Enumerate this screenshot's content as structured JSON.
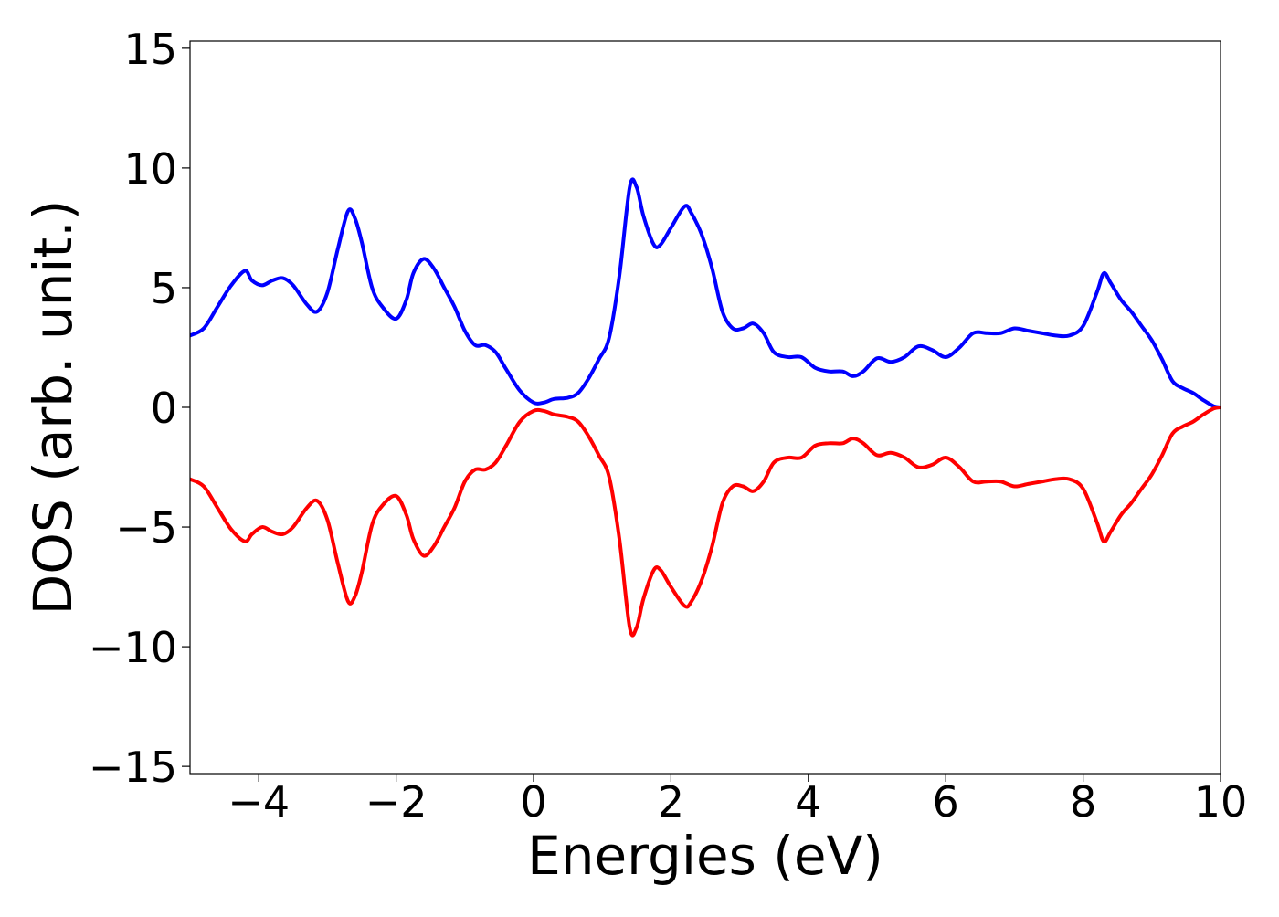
{
  "chart_data": {
    "type": "line",
    "title": "",
    "xlabel": "Energies (eV)",
    "ylabel": "DOS (arb. unit.)",
    "xlim": [
      -5,
      10
    ],
    "ylim": [
      -15.3,
      15.3
    ],
    "xticks": [
      -4,
      -2,
      0,
      2,
      4,
      6,
      8,
      10
    ],
    "xtick_labels": [
      "−4",
      "−2",
      "0",
      "2",
      "4",
      "6",
      "8",
      "10"
    ],
    "yticks": [
      -15,
      -10,
      -5,
      0,
      5,
      10,
      15
    ],
    "ytick_labels": [
      "−15",
      "−10",
      "−5",
      "0",
      "5",
      "10",
      "15"
    ],
    "grid": false,
    "legend": "none",
    "series": [
      {
        "color": "#0000ff",
        "x": [
          -5.0,
          -4.8,
          -4.6,
          -4.4,
          -4.2,
          -4.1,
          -3.95,
          -3.8,
          -3.65,
          -3.5,
          -3.3,
          -3.15,
          -3.0,
          -2.85,
          -2.7,
          -2.6,
          -2.5,
          -2.35,
          -2.2,
          -2.0,
          -1.85,
          -1.75,
          -1.6,
          -1.45,
          -1.3,
          -1.15,
          -1.0,
          -0.85,
          -0.7,
          -0.55,
          -0.4,
          -0.2,
          0.0,
          0.15,
          0.3,
          0.5,
          0.65,
          0.8,
          0.95,
          1.1,
          1.25,
          1.4,
          1.5,
          1.6,
          1.75,
          1.85,
          2.0,
          2.2,
          2.3,
          2.45,
          2.6,
          2.75,
          2.9,
          3.05,
          3.2,
          3.35,
          3.5,
          3.7,
          3.9,
          4.1,
          4.3,
          4.5,
          4.65,
          4.8,
          5.0,
          5.2,
          5.4,
          5.6,
          5.8,
          6.0,
          6.2,
          6.4,
          6.6,
          6.8,
          7.0,
          7.2,
          7.4,
          7.6,
          7.8,
          8.0,
          8.2,
          8.3,
          8.4,
          8.55,
          8.7,
          8.85,
          9.0,
          9.15,
          9.3,
          9.45,
          9.6,
          9.75,
          9.9,
          10.0
        ],
        "y": [
          3.0,
          3.3,
          4.2,
          5.1,
          5.7,
          5.3,
          5.1,
          5.3,
          5.4,
          5.1,
          4.3,
          4.0,
          4.8,
          6.6,
          8.2,
          7.9,
          6.9,
          5.0,
          4.2,
          3.7,
          4.5,
          5.6,
          6.2,
          5.8,
          5.0,
          4.2,
          3.2,
          2.6,
          2.6,
          2.3,
          1.6,
          0.7,
          0.2,
          0.2,
          0.35,
          0.4,
          0.6,
          1.2,
          2.0,
          2.9,
          5.5,
          9.2,
          9.2,
          8.0,
          6.8,
          6.8,
          7.5,
          8.4,
          8.1,
          7.2,
          5.8,
          4.0,
          3.3,
          3.3,
          3.5,
          3.1,
          2.3,
          2.1,
          2.1,
          1.65,
          1.5,
          1.5,
          1.3,
          1.5,
          2.05,
          1.9,
          2.1,
          2.55,
          2.4,
          2.1,
          2.5,
          3.1,
          3.1,
          3.1,
          3.3,
          3.2,
          3.1,
          3.0,
          3.0,
          3.4,
          4.8,
          5.6,
          5.2,
          4.5,
          4.0,
          3.4,
          2.8,
          2.0,
          1.1,
          0.8,
          0.6,
          0.3,
          0.05,
          0.0
        ]
      },
      {
        "color": "#ff0000",
        "x": [
          -5.0,
          -4.8,
          -4.6,
          -4.4,
          -4.2,
          -4.1,
          -3.95,
          -3.8,
          -3.65,
          -3.5,
          -3.3,
          -3.15,
          -3.0,
          -2.85,
          -2.7,
          -2.6,
          -2.5,
          -2.35,
          -2.2,
          -2.0,
          -1.85,
          -1.75,
          -1.6,
          -1.45,
          -1.3,
          -1.15,
          -1.0,
          -0.85,
          -0.7,
          -0.55,
          -0.4,
          -0.2,
          0.0,
          0.15,
          0.3,
          0.5,
          0.65,
          0.8,
          0.95,
          1.1,
          1.25,
          1.4,
          1.5,
          1.6,
          1.75,
          1.85,
          2.0,
          2.2,
          2.3,
          2.45,
          2.6,
          2.75,
          2.9,
          3.05,
          3.2,
          3.35,
          3.5,
          3.7,
          3.9,
          4.1,
          4.3,
          4.5,
          4.65,
          4.8,
          5.0,
          5.2,
          5.4,
          5.6,
          5.8,
          6.0,
          6.2,
          6.4,
          6.6,
          6.8,
          7.0,
          7.2,
          7.4,
          7.6,
          7.8,
          8.0,
          8.2,
          8.3,
          8.4,
          8.55,
          8.7,
          8.85,
          9.0,
          9.15,
          9.3,
          9.45,
          9.6,
          9.75,
          9.9,
          10.0
        ],
        "y": [
          -3.0,
          -3.3,
          -4.2,
          -5.1,
          -5.6,
          -5.3,
          -5.0,
          -5.2,
          -5.3,
          -5.0,
          -4.2,
          -3.9,
          -4.7,
          -6.5,
          -8.1,
          -7.9,
          -6.9,
          -4.9,
          -4.1,
          -3.7,
          -4.5,
          -5.5,
          -6.2,
          -5.8,
          -5.0,
          -4.2,
          -3.1,
          -2.6,
          -2.6,
          -2.3,
          -1.6,
          -0.6,
          -0.15,
          -0.15,
          -0.3,
          -0.4,
          -0.6,
          -1.2,
          -2.0,
          -2.9,
          -5.5,
          -9.2,
          -9.2,
          -8.0,
          -6.8,
          -6.8,
          -7.5,
          -8.3,
          -8.1,
          -7.2,
          -5.8,
          -4.0,
          -3.3,
          -3.3,
          -3.5,
          -3.1,
          -2.3,
          -2.1,
          -2.1,
          -1.6,
          -1.5,
          -1.5,
          -1.3,
          -1.5,
          -2.0,
          -1.9,
          -2.1,
          -2.5,
          -2.4,
          -2.1,
          -2.5,
          -3.1,
          -3.1,
          -3.1,
          -3.3,
          -3.2,
          -3.1,
          -3.0,
          -3.0,
          -3.4,
          -4.8,
          -5.6,
          -5.2,
          -4.5,
          -4.0,
          -3.4,
          -2.8,
          -2.0,
          -1.1,
          -0.8,
          -0.6,
          -0.3,
          -0.05,
          0.0
        ]
      }
    ]
  }
}
